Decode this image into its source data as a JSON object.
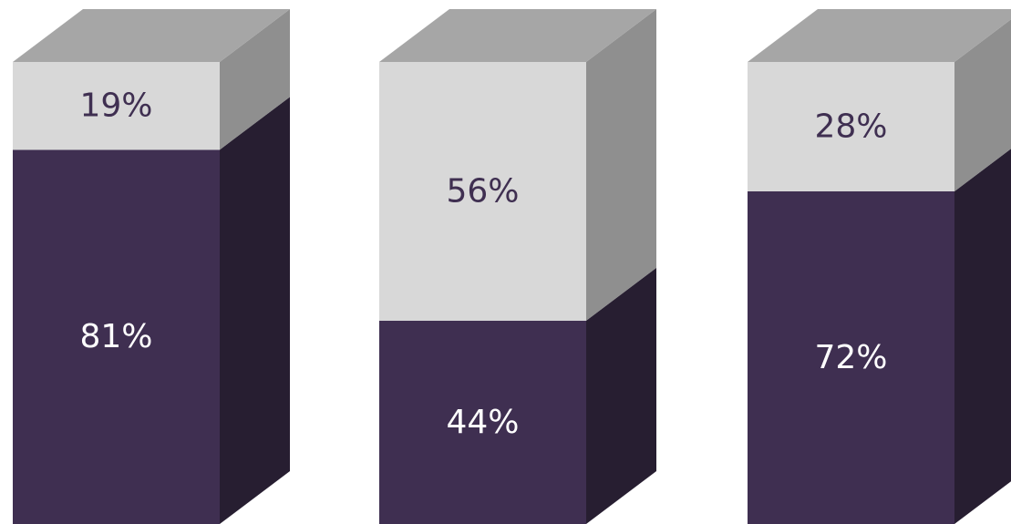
{
  "chart_data": {
    "type": "bar",
    "stacked": true,
    "three_d": true,
    "categories": [
      "",
      "",
      ""
    ],
    "series": [
      {
        "values": [
          81,
          44,
          72
        ]
      },
      {
        "values": [
          19,
          56,
          28
        ]
      }
    ],
    "data_labels": [
      [
        "81%",
        "44%",
        "72%"
      ],
      [
        "19%",
        "56%",
        "28%"
      ]
    ],
    "ylim": [
      0,
      100
    ],
    "grid": false,
    "legend": "none",
    "colors": {
      "bottom_front": "#3f2f51",
      "bottom_side": "#271e31",
      "top_front": "#d8d8d8",
      "top_side": "#8f8f8f",
      "top_cap": "#a6a6a6",
      "label_on_dark": "#ffffff",
      "label_on_light": "#3f2f51"
    }
  }
}
